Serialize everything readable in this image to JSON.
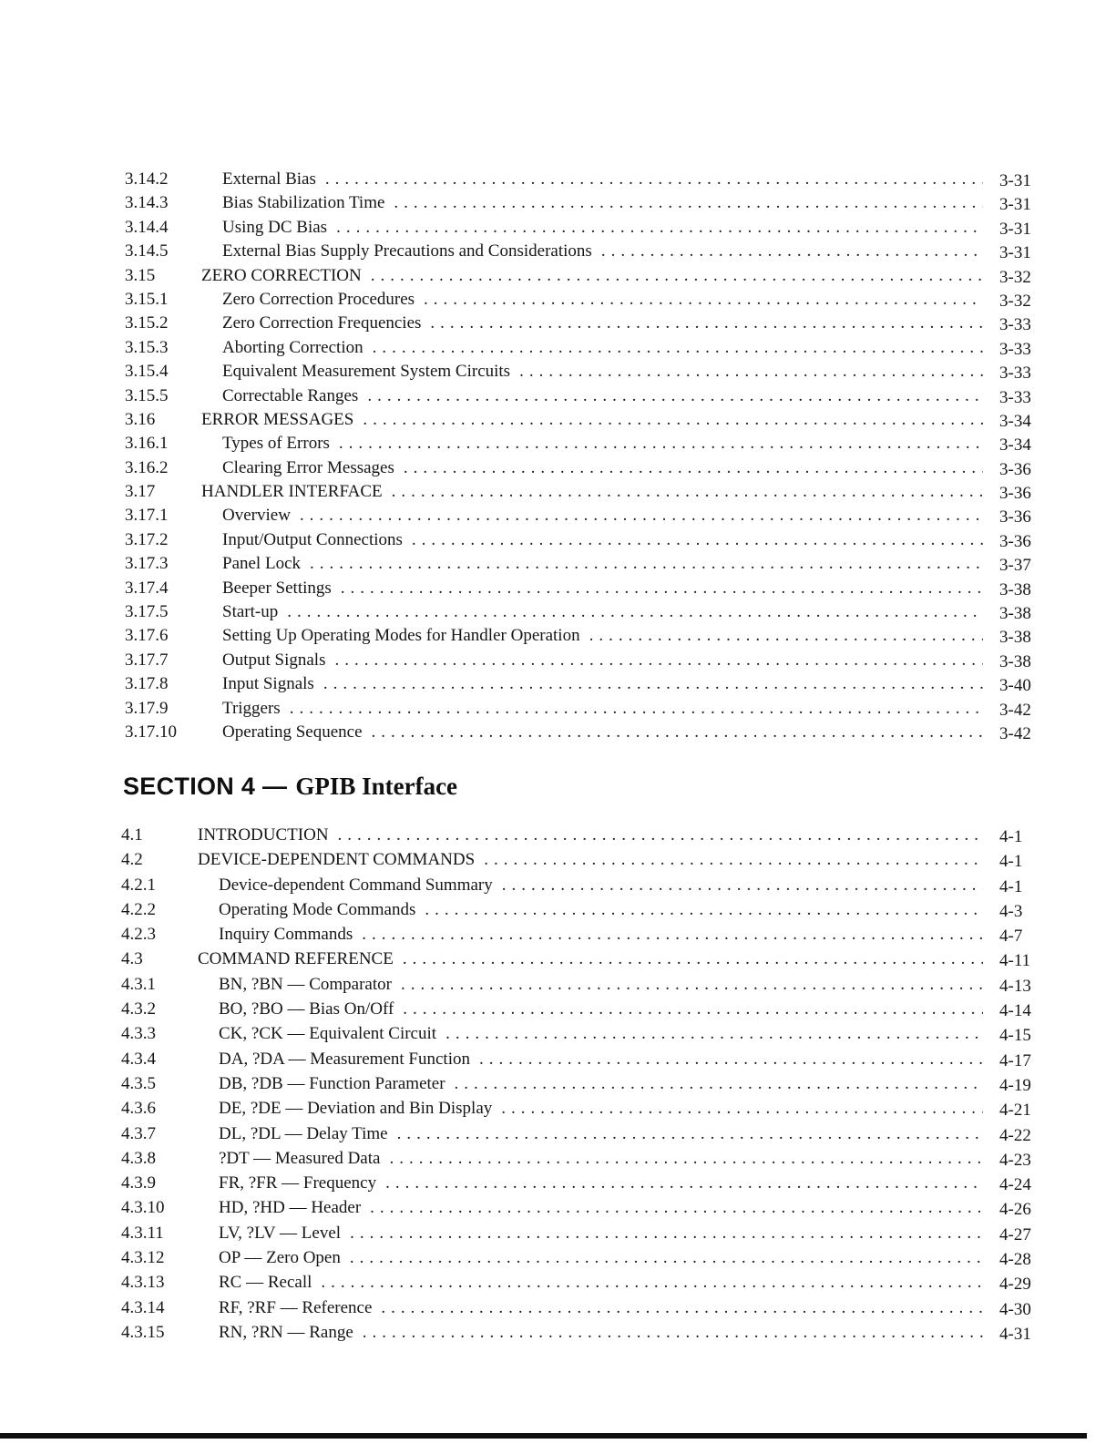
{
  "document": {
    "kind": "table-of-contents-page",
    "section3": {
      "entries": [
        {
          "num": "3.14.2",
          "title": "External Bias",
          "page": "3-31",
          "level": 3
        },
        {
          "num": "3.14.3",
          "title": "Bias Stabilization Time",
          "page": "3-31",
          "level": 3
        },
        {
          "num": "3.14.4",
          "title": "Using DC Bias",
          "page": "3-31",
          "level": 3
        },
        {
          "num": "3.14.5",
          "title": "External Bias Supply Precautions and Considerations",
          "page": "3-31",
          "level": 3
        },
        {
          "num": "3.15",
          "title": "ZERO CORRECTION",
          "page": "3-32",
          "level": 2
        },
        {
          "num": "3.15.1",
          "title": "Zero Correction Procedures",
          "page": "3-32",
          "level": 3
        },
        {
          "num": "3.15.2",
          "title": "Zero Correction Frequencies",
          "page": "3-33",
          "level": 3
        },
        {
          "num": "3.15.3",
          "title": "Aborting Correction",
          "page": "3-33",
          "level": 3
        },
        {
          "num": "3.15.4",
          "title": "Equivalent Measurement System Circuits",
          "page": "3-33",
          "level": 3
        },
        {
          "num": "3.15.5",
          "title": "Correctable Ranges",
          "page": "3-33",
          "level": 3
        },
        {
          "num": "3.16",
          "title": "ERROR MESSAGES",
          "page": "3-34",
          "level": 2
        },
        {
          "num": "3.16.1",
          "title": "Types of Errors",
          "page": "3-34",
          "level": 3
        },
        {
          "num": "3.16.2",
          "title": "Clearing Error Messages",
          "page": "3-36",
          "level": 3
        },
        {
          "num": "3.17",
          "title": "HANDLER INTERFACE",
          "page": "3-36",
          "level": 2
        },
        {
          "num": "3.17.1",
          "title": "Overview",
          "page": "3-36",
          "level": 3
        },
        {
          "num": "3.17.2",
          "title": "Input/Output Connections",
          "page": "3-36",
          "level": 3
        },
        {
          "num": "3.17.3",
          "title": "Panel Lock",
          "page": "3-37",
          "level": 3
        },
        {
          "num": "3.17.4",
          "title": "Beeper Settings",
          "page": "3-38",
          "level": 3
        },
        {
          "num": "3.17.5",
          "title": "Start-up",
          "page": "3-38",
          "level": 3
        },
        {
          "num": "3.17.6",
          "title": "Setting Up Operating Modes for Handler Operation",
          "page": "3-38",
          "level": 3
        },
        {
          "num": "3.17.7",
          "title": "Output Signals",
          "page": "3-38",
          "level": 3
        },
        {
          "num": "3.17.8",
          "title": "Input Signals",
          "page": "3-40",
          "level": 3
        },
        {
          "num": "3.17.9",
          "title": "Triggers",
          "page": "3-42",
          "level": 3
        },
        {
          "num": "3.17.10",
          "title": "Operating Sequence",
          "page": "3-42",
          "level": 3
        }
      ]
    },
    "section4": {
      "heading_prefix": "SECTION 4 —",
      "heading_title": "GPIB Interface",
      "entries": [
        {
          "num": "4.1",
          "title": "INTRODUCTION",
          "page": "4-1",
          "level": 2
        },
        {
          "num": "4.2",
          "title": "DEVICE-DEPENDENT COMMANDS",
          "page": "4-1",
          "level": 2
        },
        {
          "num": "4.2.1",
          "title": "Device-dependent Command Summary",
          "page": "4-1",
          "level": 3
        },
        {
          "num": "4.2.2",
          "title": "Operating Mode Commands",
          "page": "4-3",
          "level": 3
        },
        {
          "num": "4.2.3",
          "title": "Inquiry Commands",
          "page": "4-7",
          "level": 3
        },
        {
          "num": "4.3",
          "title": "COMMAND REFERENCE",
          "page": "4-11",
          "level": 2
        },
        {
          "num": "4.3.1",
          "title": "BN, ?BN — Comparator",
          "page": "4-13",
          "level": 3
        },
        {
          "num": "4.3.2",
          "title": "BO, ?BO — Bias On/Off",
          "page": "4-14",
          "level": 3
        },
        {
          "num": "4.3.3",
          "title": "CK, ?CK — Equivalent Circuit",
          "page": "4-15",
          "level": 3
        },
        {
          "num": "4.3.4",
          "title": "DA, ?DA — Measurement Function",
          "page": "4-17",
          "level": 3
        },
        {
          "num": "4.3.5",
          "title": "DB, ?DB — Function Parameter",
          "page": "4-19",
          "level": 3
        },
        {
          "num": "4.3.6",
          "title": "DE, ?DE — Deviation and Bin Display",
          "page": "4-21",
          "level": 3
        },
        {
          "num": "4.3.7",
          "title": "DL, ?DL — Delay Time",
          "page": "4-22",
          "level": 3
        },
        {
          "num": "4.3.8",
          "title": "?DT — Measured Data",
          "page": "4-23",
          "level": 3
        },
        {
          "num": "4.3.9",
          "title": "FR, ?FR — Frequency",
          "page": "4-24",
          "level": 3
        },
        {
          "num": "4.3.10",
          "title": "HD, ?HD — Header",
          "page": "4-26",
          "level": 3
        },
        {
          "num": "4.3.11",
          "title": "LV, ?LV — Level",
          "page": "4-27",
          "level": 3
        },
        {
          "num": "4.3.12",
          "title": "OP — Zero Open",
          "page": "4-28",
          "level": 3
        },
        {
          "num": "4.3.13",
          "title": "RC — Recall",
          "page": "4-29",
          "level": 3
        },
        {
          "num": "4.3.14",
          "title": "RF, ?RF — Reference",
          "page": "4-30",
          "level": 3
        },
        {
          "num": "4.3.15",
          "title": "RN, ?RN — Range",
          "page": "4-31",
          "level": 3
        }
      ]
    }
  }
}
